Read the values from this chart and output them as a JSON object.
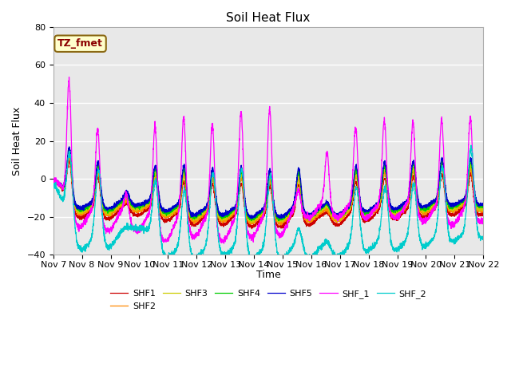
{
  "title": "Soil Heat Flux",
  "ylabel": "Soil Heat Flux",
  "xlabel": "Time",
  "annotation": "TZ_fmet",
  "ylim": [
    -40,
    80
  ],
  "xlim": [
    0,
    360
  ],
  "xtick_positions": [
    0,
    24,
    48,
    72,
    96,
    120,
    144,
    168,
    192,
    216,
    240,
    264,
    288,
    312,
    336,
    360
  ],
  "xtick_labels": [
    "Nov 7",
    "Nov 8",
    "Nov 9",
    "Nov 10",
    "Nov 11",
    "Nov 12",
    "Nov 13",
    "Nov 14",
    "Nov 15",
    "Nov 16",
    "Nov 17",
    "Nov 18",
    "Nov 19",
    "Nov 20",
    "Nov 21",
    "Nov 22"
  ],
  "background_color": "#e8e8e8",
  "grid_color": "#ffffff",
  "series_colors": {
    "SHF1": "#cc0000",
    "SHF2": "#ff8800",
    "SHF3": "#cccc00",
    "SHF4": "#00cc00",
    "SHF5": "#0000cc",
    "SHF_1": "#ff00ff",
    "SHF_2": "#00cccc"
  },
  "legend_order": [
    "SHF1",
    "SHF2",
    "SHF3",
    "SHF4",
    "SHF5",
    "SHF_1",
    "SHF_2"
  ]
}
